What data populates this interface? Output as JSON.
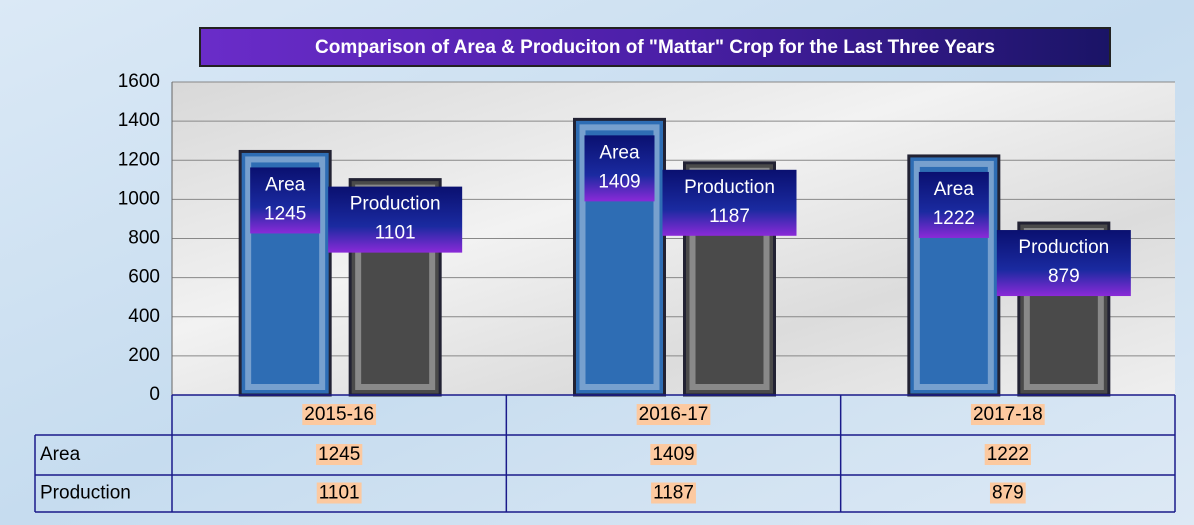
{
  "chart_data": {
    "type": "bar",
    "title": "Comparison of Area & Produciton of  \"Mattar\" Crop  for the Last Three Years",
    "categories": [
      "2015-16",
      "2016-17",
      "2017-18"
    ],
    "series": [
      {
        "name": "Area",
        "color": "#2e6db4",
        "values": [
          1245,
          1409,
          1222
        ]
      },
      {
        "name": "Production",
        "color": "#4a4a4a",
        "values": [
          1101,
          1187,
          879
        ]
      }
    ],
    "ylim": [
      0,
      1600
    ],
    "yticks": [
      0,
      200,
      400,
      600,
      800,
      1000,
      1200,
      1400,
      1600
    ],
    "grid": true
  }
}
